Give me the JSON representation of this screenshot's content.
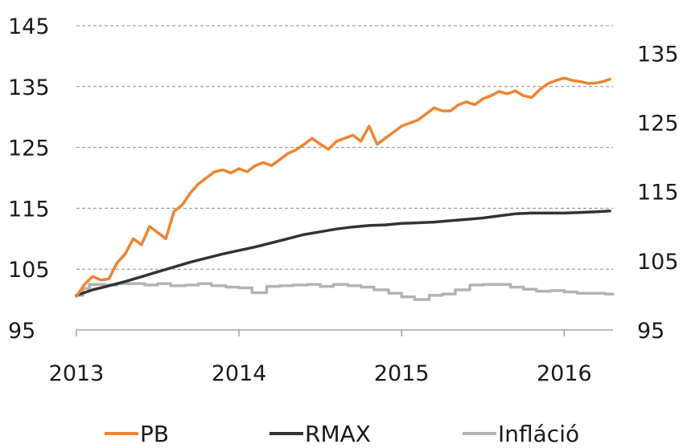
{
  "chart_data": {
    "type": "line",
    "title": "",
    "xlabel": "",
    "ylabel": "",
    "x_ticks": [
      "2013",
      "2014",
      "2015",
      "2016"
    ],
    "x_range": [
      2013.0,
      2016.3
    ],
    "y_left": {
      "lim": [
        95,
        145
      ],
      "ticks": [
        "145",
        "135",
        "125",
        "115",
        "105",
        "95"
      ]
    },
    "y_right": {
      "lim": [
        95,
        139
      ],
      "ticks": [
        "135",
        "125",
        "115",
        "105",
        "95"
      ]
    },
    "grid": "horizontal dashed",
    "legend_position": "bottom",
    "series": [
      {
        "name": "PB",
        "color": "#ee8432",
        "axis": "left",
        "x": [
          2013.0,
          2013.05,
          2013.1,
          2013.15,
          2013.2,
          2013.25,
          2013.3,
          2013.35,
          2013.4,
          2013.45,
          2013.5,
          2013.55,
          2013.6,
          2013.65,
          2013.7,
          2013.75,
          2013.8,
          2013.85,
          2013.9,
          2013.95,
          2014.0,
          2014.05,
          2014.1,
          2014.15,
          2014.2,
          2014.25,
          2014.3,
          2014.35,
          2014.4,
          2014.45,
          2014.5,
          2014.55,
          2014.6,
          2014.65,
          2014.7,
          2014.75,
          2014.8,
          2014.85,
          2014.9,
          2014.95,
          2015.0,
          2015.05,
          2015.1,
          2015.15,
          2015.2,
          2015.25,
          2015.3,
          2015.35,
          2015.4,
          2015.45,
          2015.5,
          2015.55,
          2015.6,
          2015.65,
          2015.7,
          2015.75,
          2015.8,
          2015.85,
          2015.9,
          2015.95,
          2016.0,
          2016.05,
          2016.1,
          2016.15,
          2016.2,
          2016.25,
          2016.28
        ],
        "values": [
          100.5,
          102.5,
          103.8,
          103.2,
          103.4,
          106.0,
          107.5,
          110.0,
          109.0,
          112.0,
          111.0,
          110.0,
          114.5,
          115.5,
          117.5,
          119.0,
          120.0,
          121.0,
          121.3,
          120.8,
          121.5,
          121.0,
          122.0,
          122.5,
          122.0,
          123.0,
          124.0,
          124.6,
          125.5,
          126.5,
          125.5,
          124.7,
          126.0,
          126.5,
          127.0,
          126.0,
          128.5,
          125.5,
          126.5,
          127.5,
          128.5,
          129.0,
          129.5,
          130.5,
          131.5,
          131.0,
          131.0,
          132.0,
          132.5,
          132.0,
          133.0,
          133.5,
          134.2,
          133.8,
          134.3,
          133.5,
          133.2,
          134.5,
          135.5,
          136.0,
          136.4,
          136.0,
          135.8,
          135.5,
          135.6,
          135.9,
          136.2
        ]
      },
      {
        "name": "RMAX",
        "color": "#333333",
        "axis": "right",
        "x": [
          2013.0,
          2013.1,
          2013.2,
          2013.3,
          2013.4,
          2013.5,
          2013.6,
          2013.7,
          2013.8,
          2013.9,
          2014.0,
          2014.1,
          2014.2,
          2014.3,
          2014.4,
          2014.5,
          2014.6,
          2014.7,
          2014.8,
          2014.9,
          2015.0,
          2015.1,
          2015.2,
          2015.3,
          2015.4,
          2015.5,
          2015.6,
          2015.7,
          2015.8,
          2015.9,
          2016.0,
          2016.1,
          2016.2,
          2016.28
        ],
        "values": [
          100.0,
          100.8,
          101.4,
          102.0,
          102.7,
          103.4,
          104.1,
          104.8,
          105.4,
          106.0,
          106.5,
          107.0,
          107.6,
          108.2,
          108.8,
          109.2,
          109.6,
          109.9,
          110.1,
          110.2,
          110.4,
          110.5,
          110.6,
          110.8,
          111.0,
          111.2,
          111.5,
          111.8,
          111.9,
          111.9,
          111.9,
          112.0,
          112.1,
          112.2
        ]
      },
      {
        "name": "Infláció",
        "color": "#b3b3b3",
        "axis": "right",
        "step": true,
        "x": [
          2013.0,
          2013.04,
          2013.08,
          2013.17,
          2013.25,
          2013.33,
          2013.42,
          2013.5,
          2013.58,
          2013.67,
          2013.75,
          2013.83,
          2013.92,
          2014.0,
          2014.08,
          2014.17,
          2014.25,
          2014.33,
          2014.42,
          2014.5,
          2014.58,
          2014.67,
          2014.75,
          2014.83,
          2014.92,
          2015.0,
          2015.08,
          2015.17,
          2015.25,
          2015.33,
          2015.42,
          2015.5,
          2015.58,
          2015.67,
          2015.75,
          2015.83,
          2015.92,
          2016.0,
          2016.08,
          2016.17,
          2016.25
        ],
        "values": [
          100.0,
          101.0,
          101.6,
          101.5,
          101.7,
          101.7,
          101.5,
          101.7,
          101.4,
          101.5,
          101.7,
          101.4,
          101.2,
          101.1,
          100.4,
          101.3,
          101.4,
          101.5,
          101.6,
          101.3,
          101.6,
          101.4,
          101.2,
          100.8,
          100.3,
          99.8,
          99.4,
          100.0,
          100.2,
          100.8,
          101.5,
          101.6,
          101.6,
          101.2,
          100.9,
          100.6,
          100.7,
          100.5,
          100.3,
          100.3,
          100.2
        ]
      }
    ]
  }
}
